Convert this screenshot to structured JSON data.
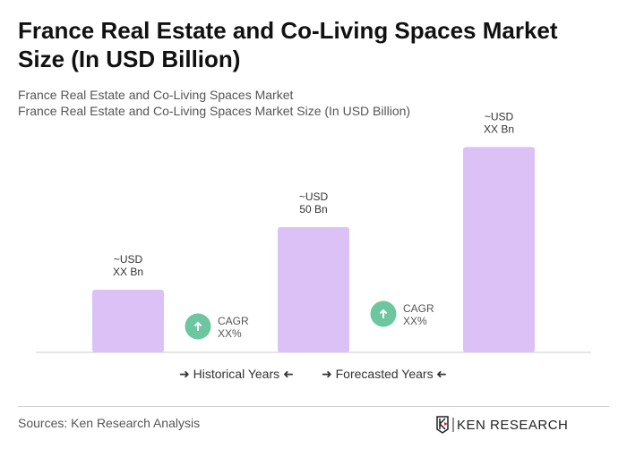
{
  "title": "France Real Estate and Co-Living Spaces Market Size (In USD Billion)",
  "subtitle1": "France Real Estate and Co-Living Spaces Market",
  "subtitle2": "France Real Estate and Co-Living Spaces Market Size (In USD Billion)",
  "chart_data": {
    "type": "bar",
    "categories": [
      "",
      "",
      ""
    ],
    "values": [
      25,
      50,
      82
    ],
    "data_labels": [
      [
        "~USD",
        "XX Bn"
      ],
      [
        "~USD",
        "50 Bn"
      ],
      [
        "~USD",
        "XX Bn"
      ]
    ],
    "bar_color": "#dcc1f6",
    "cagr": [
      {
        "label": "CAGR",
        "value": "XX%"
      },
      {
        "label": "CAGR",
        "value": "XX%"
      }
    ],
    "cagr_color": "#6cc6a0",
    "grid": false
  },
  "legend": {
    "historical": "Historical Years",
    "forecasted": "Forecasted Years"
  },
  "sources": "Sources: Ken Research Analysis",
  "logo_text": "KEN RESEARCH"
}
